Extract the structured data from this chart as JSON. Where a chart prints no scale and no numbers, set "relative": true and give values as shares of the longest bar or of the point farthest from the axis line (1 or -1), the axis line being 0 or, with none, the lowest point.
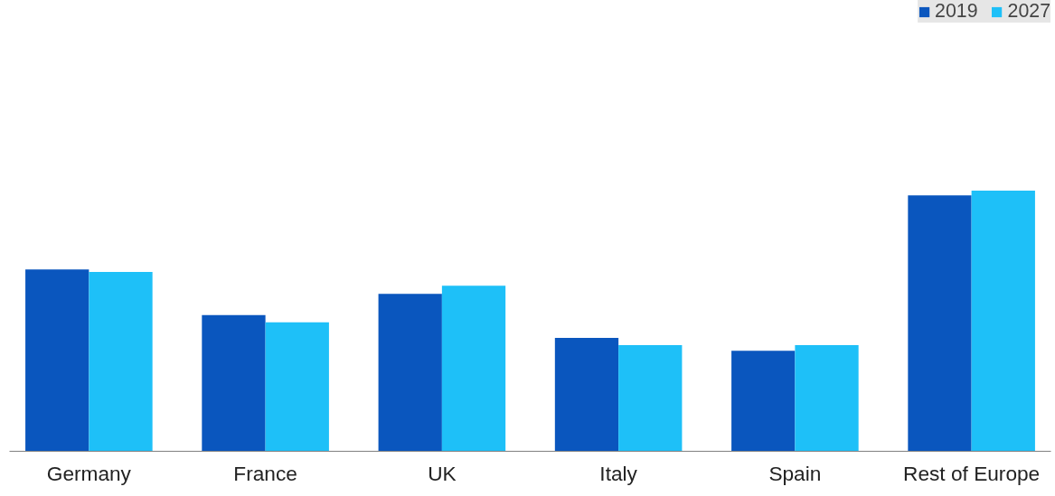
{
  "chart_data": {
    "type": "bar",
    "relative": true,
    "categories": [
      "Germany",
      "France",
      "UK",
      "Italy",
      "Spain",
      "Rest of Europe"
    ],
    "series": [
      {
        "name": "2019",
        "color": "#0a56be",
        "values": [
          0.698,
          0.523,
          0.604,
          0.435,
          0.386,
          0.982
        ]
      },
      {
        "name": "2027",
        "color": "#1ec0f8",
        "values": [
          0.688,
          0.495,
          0.635,
          0.407,
          0.407,
          1
        ]
      }
    ],
    "legend": "top right",
    "grid": false
  }
}
